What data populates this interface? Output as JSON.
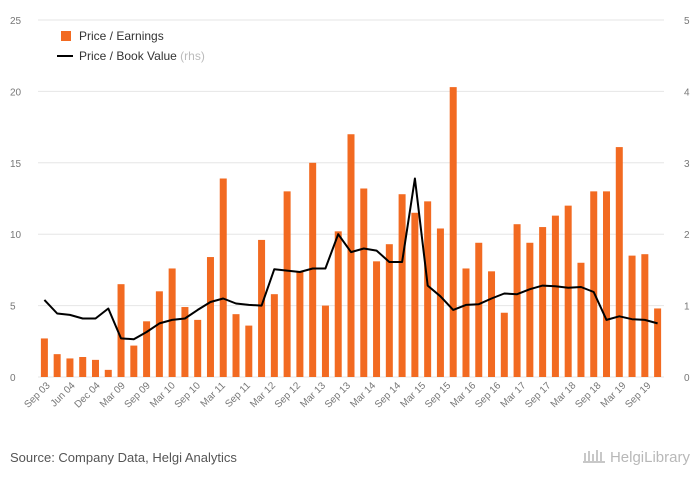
{
  "chart_data": {
    "type": "bar",
    "title": "",
    "xlabel": "",
    "ylabel": "",
    "ylim": [
      0,
      25
    ],
    "y2lim": [
      0,
      5
    ],
    "yticks": [
      "0",
      "5",
      "10",
      "15",
      "20",
      "25"
    ],
    "y2ticks": [
      "0",
      "1",
      "2",
      "3",
      "4",
      "5"
    ],
    "grid": true,
    "legend_position": "top-left",
    "colors": {
      "bar": "#f26a21",
      "line": "#000000",
      "grid": "#e6e6e6"
    },
    "x_tick_labels": [
      "Sep 03",
      "Jun 04",
      "Dec 04",
      "Mar 09",
      "Sep 09",
      "Mar 10",
      "Sep 10",
      "Mar 11",
      "Sep 11",
      "Mar 12",
      "Sep 12",
      "Mar 13",
      "Sep 13",
      "Mar 14",
      "Sep 14",
      "Mar 15",
      "Sep 15",
      "Mar 16",
      "Sep 16",
      "Mar 17",
      "Sep 17",
      "Mar 18",
      "Sep 18",
      "Mar 19",
      "Sep 19"
    ],
    "series": [
      {
        "name": "Price / Earnings",
        "type": "bar",
        "axis": "left",
        "values": [
          2.7,
          1.6,
          1.3,
          1.4,
          1.2,
          0.5,
          6.5,
          2.2,
          3.9,
          6.0,
          7.6,
          4.9,
          4.0,
          8.4,
          13.9,
          4.4,
          3.6,
          9.6,
          5.8,
          13.0,
          7.4,
          15.0,
          5.0,
          10.2,
          17.0,
          13.2,
          8.1,
          9.3,
          12.8,
          11.5,
          12.3,
          10.4,
          20.3,
          7.6,
          9.4,
          7.4,
          4.5,
          10.7,
          9.4,
          10.5,
          11.3,
          12.0,
          8.0,
          13.0,
          13.0,
          16.1,
          8.5,
          8.6,
          4.8
        ]
      },
      {
        "name": "Price / Book Value",
        "name_suffix": "(rhs)",
        "type": "line",
        "axis": "right",
        "values": [
          1.08,
          0.89,
          0.87,
          0.82,
          0.82,
          0.96,
          0.54,
          0.53,
          0.63,
          0.75,
          0.8,
          0.82,
          0.94,
          1.05,
          1.1,
          1.03,
          1.01,
          1.0,
          1.51,
          1.49,
          1.47,
          1.52,
          1.52,
          2.0,
          1.75,
          1.8,
          1.77,
          1.61,
          1.61,
          2.78,
          1.28,
          1.13,
          0.94,
          1.01,
          1.02,
          1.1,
          1.17,
          1.16,
          1.23,
          1.28,
          1.27,
          1.25,
          1.26,
          1.19,
          0.8,
          0.85,
          0.81,
          0.8,
          0.75
        ]
      }
    ]
  },
  "footer": {
    "source": "Source: Company Data, Helgi Analytics",
    "brand": "HelgiLibrary"
  }
}
